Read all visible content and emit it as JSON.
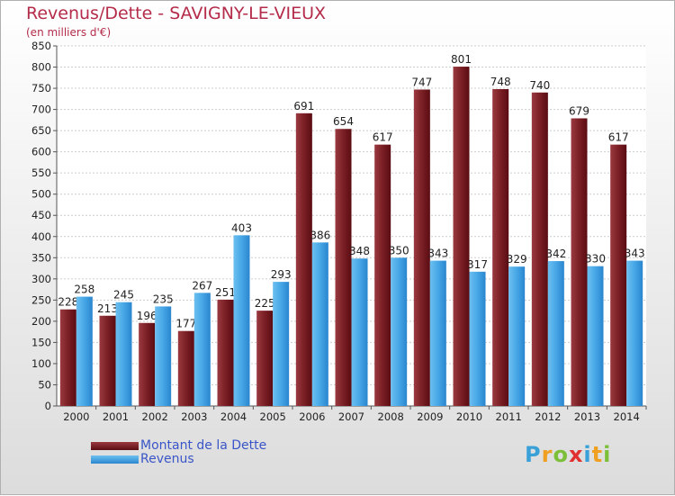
{
  "chart_data": {
    "type": "bar",
    "title": "Revenus/Dette - SAVIGNY-LE-VIEUX",
    "subtitle": "(en milliers d'€)",
    "categories": [
      "2000",
      "2001",
      "2002",
      "2003",
      "2004",
      "2005",
      "2006",
      "2007",
      "2008",
      "2009",
      "2010",
      "2011",
      "2012",
      "2013",
      "2014"
    ],
    "series": [
      {
        "name": "Montant de la Dette",
        "color": "#7a1f25",
        "values": [
          228,
          213,
          196,
          177,
          251,
          225,
          691,
          654,
          617,
          747,
          801,
          748,
          740,
          679,
          617
        ]
      },
      {
        "name": "Revenus",
        "color": "#3d9fe0",
        "values": [
          258,
          245,
          235,
          267,
          403,
          293,
          386,
          348,
          350,
          343,
          317,
          329,
          342,
          330,
          343
        ]
      }
    ],
    "ylim": [
      0,
      850
    ],
    "ytick_step": 50,
    "grid": true,
    "legend_position": "bottom-left"
  },
  "logo": "Proxiti"
}
